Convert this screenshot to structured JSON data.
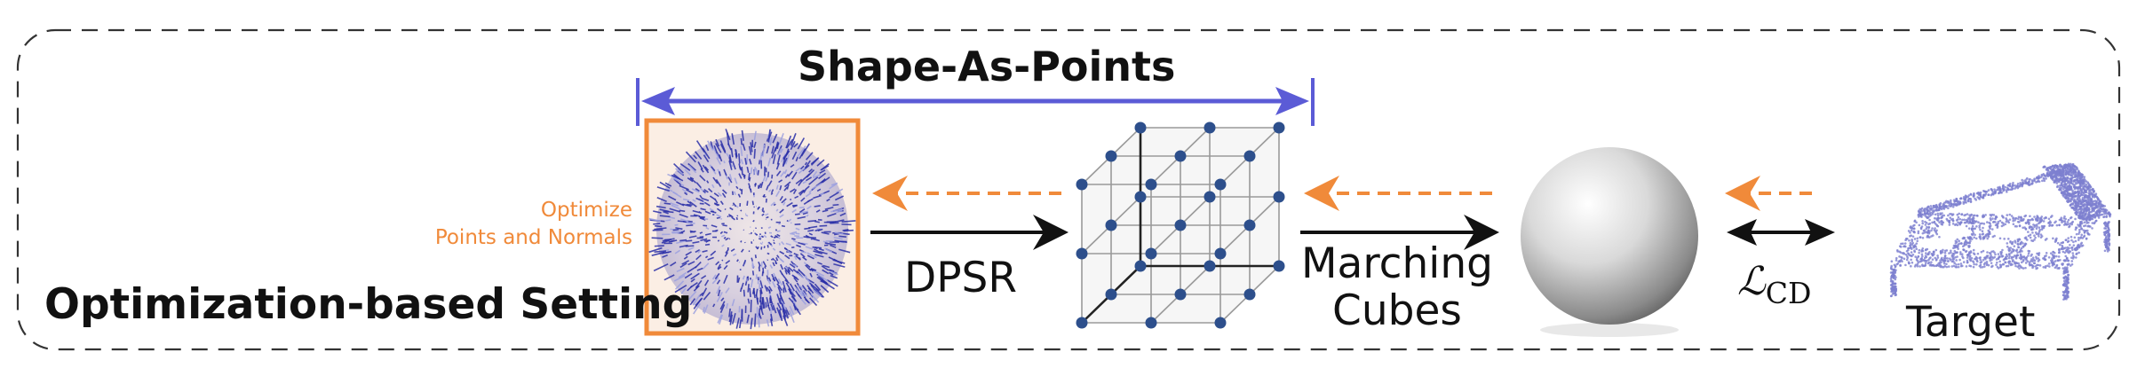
{
  "frame": {
    "title": "Optimization-based Setting"
  },
  "shape_as_points": {
    "label": "Shape-As-Points"
  },
  "optimize_note": {
    "line1": "Optimize",
    "line2": "Points and Normals"
  },
  "steps": {
    "dpsr": "DPSR",
    "marching_line1": "Marching",
    "marching_line2": "Cubes",
    "loss_symbol": "ℒ",
    "loss_subscript": "CD",
    "target": "Target"
  },
  "colors": {
    "accent_blue": "#5b5bd6",
    "points_blue": "#2a2fa8",
    "orange": "#f08a3a",
    "grid_node": "#2d4f8c"
  }
}
